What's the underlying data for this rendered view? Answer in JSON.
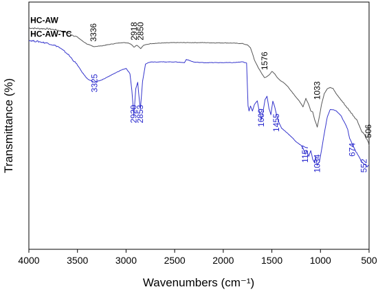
{
  "chart_data": {
    "type": "line",
    "xlabel": "Wavenumbers (cm⁻¹)",
    "ylabel": "Transmittance (%)",
    "xlim": [
      4000,
      500
    ],
    "x_reversed": true,
    "x_ticks": [
      4000,
      3500,
      3000,
      2500,
      2000,
      1500,
      1000,
      500
    ],
    "x_tick_labels": [
      "4000",
      "3500",
      "3000",
      "2500",
      "2000",
      "1500",
      "1000",
      "500"
    ],
    "y_ticks_shown": false,
    "grid": false,
    "ylim": [
      0,
      100
    ],
    "series": [
      {
        "name": "HC-AW",
        "color": "#555555",
        "x": [
          4000,
          3900,
          3800,
          3700,
          3600,
          3500,
          3450,
          3400,
          3336,
          3250,
          3150,
          3050,
          2980,
          2950,
          2918,
          2890,
          2870,
          2850,
          2820,
          2750,
          2650,
          2500,
          2350,
          2200,
          2100,
          2000,
          1900,
          1800,
          1750,
          1720,
          1700,
          1680,
          1640,
          1600,
          1576,
          1550,
          1520,
          1500,
          1470,
          1440,
          1410,
          1380,
          1340,
          1300,
          1250,
          1200,
          1180,
          1150,
          1120,
          1100,
          1080,
          1060,
          1033,
          1010,
          990,
          960,
          930,
          900,
          870,
          840,
          800,
          760,
          720,
          680,
          650,
          620,
          600,
          580,
          550,
          530,
          506,
          500
        ],
        "y": [
          89.5,
          89.3,
          89.2,
          88.6,
          87.5,
          85.8,
          84.3,
          83.0,
          82.0,
          82.3,
          83.0,
          83.6,
          83.5,
          83.0,
          81.8,
          82.6,
          82.0,
          81.2,
          82.5,
          83.2,
          83.4,
          83.6,
          83.6,
          83.6,
          83.5,
          83.5,
          83.4,
          83.2,
          82.6,
          81.5,
          79.2,
          76.6,
          73.5,
          70.8,
          69.5,
          69.8,
          70.8,
          72.0,
          71.0,
          69.2,
          68.2,
          67.5,
          66.0,
          64.0,
          61.5,
          59.0,
          57.5,
          61.0,
          58.5,
          56.0,
          55.5,
          52.5,
          49.5,
          54.0,
          58.5,
          63.0,
          65.0,
          65.5,
          65.0,
          63.0,
          61.0,
          59.0,
          57.0,
          55.0,
          53.5,
          52.0,
          50.0,
          48.0,
          46.5,
          45.0,
          43.0,
          42.0
        ]
      },
      {
        "name": "HC-AW-TC",
        "color": "#3333cc",
        "x": [
          4000,
          3900,
          3800,
          3700,
          3600,
          3500,
          3450,
          3400,
          3325,
          3250,
          3150,
          3050,
          3000,
          2960,
          2940,
          2920,
          2900,
          2880,
          2870,
          2853,
          2830,
          2800,
          2750,
          2650,
          2500,
          2400,
          2380,
          2300,
          2200,
          2100,
          2000,
          1900,
          1800,
          1760,
          1745,
          1735,
          1720,
          1700,
          1680,
          1650,
          1630,
          1609,
          1590,
          1570,
          1550,
          1530,
          1510,
          1490,
          1470,
          1455,
          1430,
          1400,
          1370,
          1340,
          1300,
          1250,
          1200,
          1180,
          1157,
          1140,
          1120,
          1100,
          1080,
          1060,
          1050,
          1034,
          1010,
          990,
          960,
          930,
          900,
          870,
          840,
          800,
          760,
          720,
          700,
          674,
          650,
          620,
          600,
          580,
          552,
          520,
          500
        ],
        "y": [
          84.5,
          84.0,
          83.3,
          82.0,
          79.0,
          74.5,
          71.5,
          69.0,
          67.5,
          68.5,
          70.5,
          72.5,
          73.2,
          71.0,
          64.0,
          54.0,
          65.0,
          67.5,
          63.0,
          56.5,
          68.0,
          75.0,
          75.8,
          75.8,
          75.8,
          75.5,
          76.8,
          75.7,
          75.5,
          75.5,
          75.5,
          75.5,
          75.8,
          75.3,
          58.0,
          56.0,
          58.0,
          56.0,
          58.5,
          60.0,
          56.0,
          52.5,
          56.0,
          60.5,
          62.0,
          57.0,
          54.5,
          60.0,
          57.5,
          55.0,
          51.5,
          49.0,
          48.0,
          47.0,
          45.5,
          43.5,
          42.0,
          41.0,
          38.5,
          40.0,
          37.5,
          40.0,
          36.5,
          35.0,
          37.5,
          34.0,
          35.5,
          40.0,
          47.0,
          53.5,
          56.5,
          56.5,
          56.0,
          54.5,
          52.0,
          48.5,
          45.0,
          42.5,
          40.5,
          38.5,
          37.0,
          35.5,
          34.5,
          33.5,
          34.0
        ]
      }
    ],
    "series_labels": [
      {
        "text": "HC-AW",
        "x": 3985,
        "y": 91.5
      },
      {
        "text": "HC-AW-TC",
        "x": 3985,
        "y": 86.0
      }
    ],
    "annotations": [
      {
        "text": "3336",
        "x": 3336,
        "y": 84.0,
        "color": "#000000"
      },
      {
        "text": "2918",
        "x": 2918,
        "y": 84.5,
        "color": "#000000"
      },
      {
        "text": "2850",
        "x": 2850,
        "y": 84.5,
        "color": "#000000"
      },
      {
        "text": "1576",
        "x": 1576,
        "y": 72.5,
        "color": "#000000"
      },
      {
        "text": "1033",
        "x": 1033,
        "y": 60.5,
        "color": "#000000"
      },
      {
        "text": "506",
        "x": 506,
        "y": 45.0,
        "color": "#000000"
      },
      {
        "text": "3325",
        "x": 3325,
        "y": 63.5,
        "color": "#2222cc"
      },
      {
        "text": "2920",
        "x": 2920,
        "y": 51.0,
        "color": "#2222cc"
      },
      {
        "text": "2853",
        "x": 2853,
        "y": 51.0,
        "color": "#2222cc"
      },
      {
        "text": "1609",
        "x": 1609,
        "y": 49.5,
        "color": "#2222cc"
      },
      {
        "text": "1455",
        "x": 1455,
        "y": 47.5,
        "color": "#2222cc"
      },
      {
        "text": "1157",
        "x": 1157,
        "y": 35.0,
        "color": "#2222cc"
      },
      {
        "text": "1034",
        "x": 1034,
        "y": 31.0,
        "color": "#2222cc"
      },
      {
        "text": "674",
        "x": 674,
        "y": 37.5,
        "color": "#2222cc"
      },
      {
        "text": "552",
        "x": 552,
        "y": 31.0,
        "color": "#2222cc"
      }
    ]
  }
}
